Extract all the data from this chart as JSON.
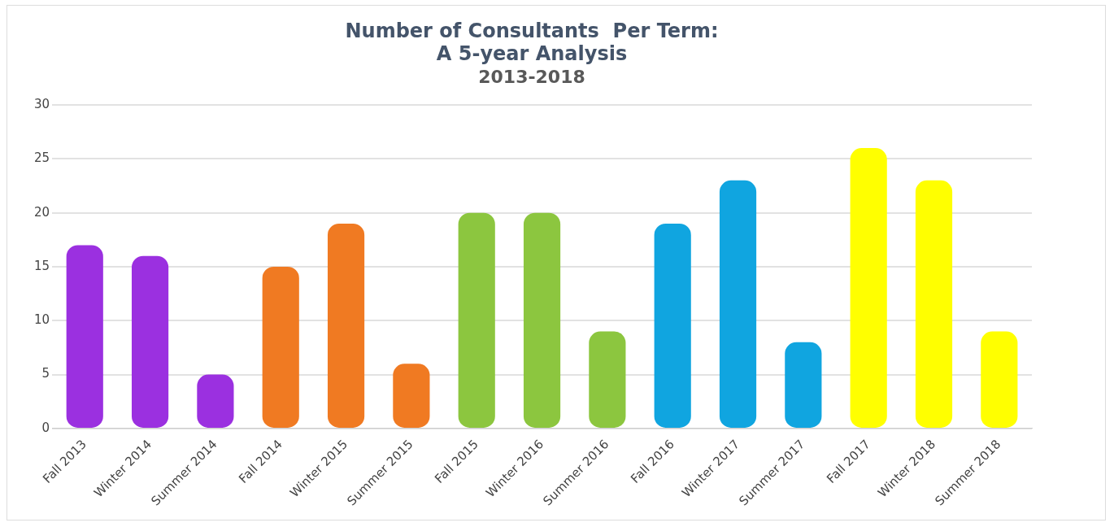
{
  "chart_data": {
    "type": "bar",
    "title": "Number of Consultants  Per Term:\nA 5-year Analysis",
    "subtitle": "2013-2018",
    "categories": [
      "Fall 2013",
      "Winter 2014",
      "Summer 2014",
      "Fall 2014",
      "Winter 2015",
      "Summer 2015",
      "Fall 2015",
      "Winter 2016",
      "Summer 2016",
      "Fall 2016",
      "Winter 2017",
      "Summer 2017",
      "Fall 2017",
      "Winter 2018",
      "Summer 2018"
    ],
    "values": [
      17,
      16,
      5,
      15,
      19,
      6,
      20,
      20,
      9,
      19,
      23,
      8,
      26,
      23,
      9
    ],
    "colors": [
      "#9b30e0",
      "#9b30e0",
      "#9b30e0",
      "#f07a22",
      "#f07a22",
      "#f07a22",
      "#8cc63f",
      "#8cc63f",
      "#8cc63f",
      "#10a5e0",
      "#10a5e0",
      "#10a5e0",
      "#ffff00",
      "#ffff00",
      "#ffff00"
    ],
    "ylim": [
      0,
      30
    ],
    "yticks": [
      0,
      5,
      10,
      15,
      20,
      25,
      30
    ],
    "grid": "y",
    "legend": false
  }
}
